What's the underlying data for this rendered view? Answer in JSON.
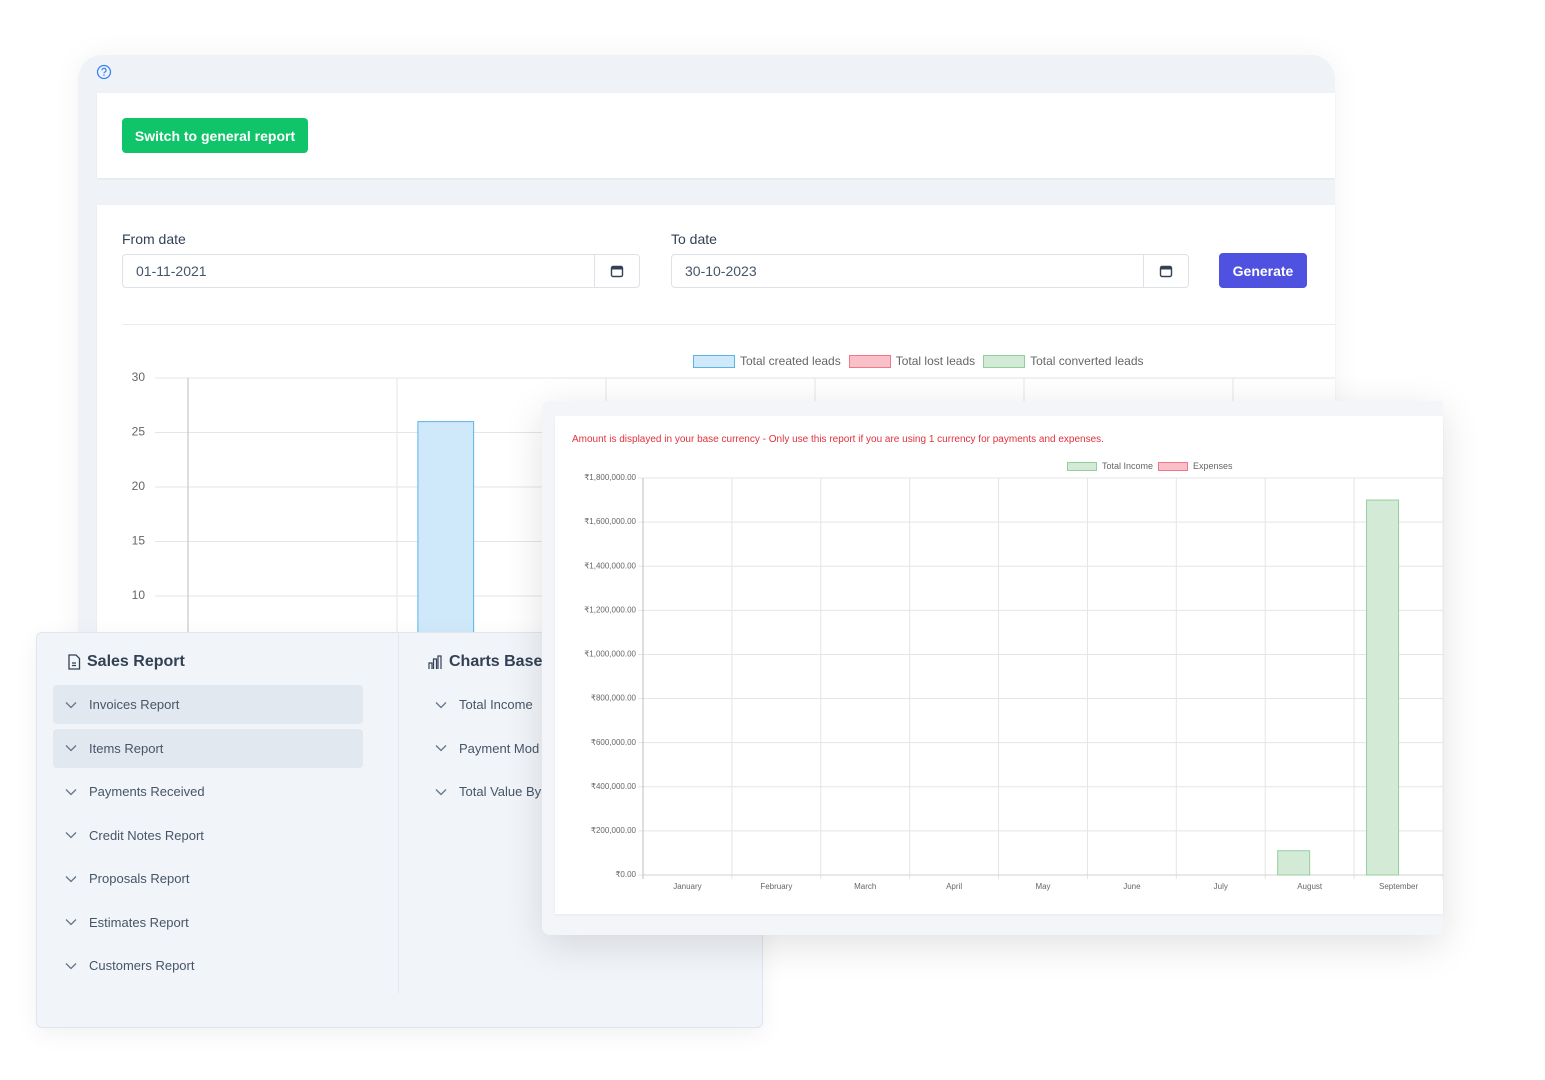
{
  "general_report": {
    "button": "Switch to general report"
  },
  "date_filter": {
    "from_label": "From date",
    "from_value": "01-11-2021",
    "to_label": "To date",
    "to_value": "30-10-2023",
    "generate": "Generate"
  },
  "chart_data": [
    {
      "type": "bar",
      "categories": [
        null,
        null
      ],
      "series": [
        {
          "name": "Total created leads",
          "color": "#cfe9fa",
          "edge_color": "#5ab4e5",
          "values": [
            0,
            26
          ]
        },
        {
          "name": "Total lost leads",
          "color": "#f9c0c9",
          "edge_color": "#f0788b",
          "values": [
            0,
            0
          ]
        },
        {
          "name": "Total converted leads",
          "color": "#d3ebd6",
          "edge_color": "#93cf9c",
          "values": [
            0,
            0
          ]
        }
      ],
      "ylim": [
        0,
        30
      ],
      "yticks": [
        10,
        15,
        20,
        25,
        30
      ],
      "grid": true
    },
    {
      "type": "bar",
      "subtitle": "Amount is displayed in your base currency - Only use this report if you are using 1 currency for payments and expenses.",
      "categories": [
        "January",
        "February",
        "March",
        "April",
        "May",
        "June",
        "July",
        "August",
        "September"
      ],
      "series": [
        {
          "name": "Total Income",
          "color": "#d3ebd6",
          "edge_color": "#93cf9c",
          "values": [
            0,
            0,
            0,
            0,
            0,
            0,
            0,
            110000,
            1700000
          ]
        },
        {
          "name": "Expenses",
          "color": "#f9c0c9",
          "edge_color": "#f0788b",
          "values": [
            0,
            0,
            0,
            0,
            0,
            0,
            0,
            0,
            0
          ]
        }
      ],
      "ylim": [
        0,
        1800000
      ],
      "yticks": [
        {
          "value": 0,
          "label": "₹0.00"
        },
        {
          "value": 200000,
          "label": "₹200,000.00"
        },
        {
          "value": 400000,
          "label": "₹400,000.00"
        },
        {
          "value": 600000,
          "label": "₹600,000.00"
        },
        {
          "value": 800000,
          "label": "₹800,000.00"
        },
        {
          "value": 1000000,
          "label": "₹1,000,000.00"
        },
        {
          "value": 1200000,
          "label": "₹1,200,000.00"
        },
        {
          "value": 1400000,
          "label": "₹1,400,000.00"
        },
        {
          "value": 1600000,
          "label": "₹1,600,000.00"
        },
        {
          "value": 1800000,
          "label": "₹1,800,000.00"
        }
      ],
      "grid": true
    }
  ],
  "sales_report": {
    "title": "Sales Report",
    "items": [
      "Invoices Report",
      "Items Report",
      "Payments Received",
      "Credit Notes Report",
      "Proposals Report",
      "Estimates Report",
      "Customers Report"
    ]
  },
  "charts_based": {
    "title": "Charts Base",
    "items": [
      "Total Income",
      "Payment Mod",
      "Total Value By"
    ]
  }
}
